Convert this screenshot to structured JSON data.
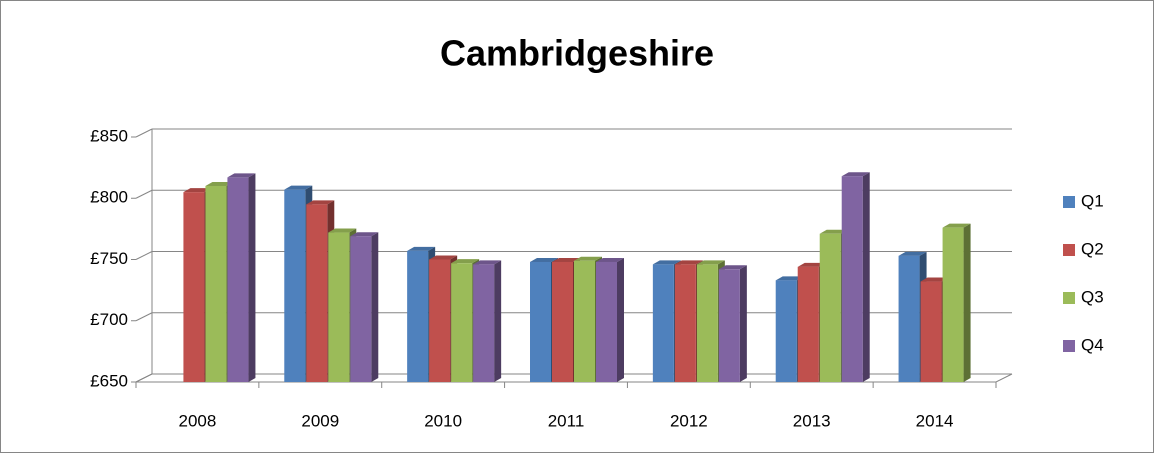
{
  "chart_data": {
    "type": "bar3d",
    "title": "Cambridgeshire",
    "categories": [
      "2008",
      "2009",
      "2010",
      "2011",
      "2012",
      "2013",
      "2014"
    ],
    "series": [
      {
        "name": "Q1",
        "color": "#4f81bd",
        "values": [
          null,
          807,
          757,
          748,
          746,
          733,
          753
        ]
      },
      {
        "name": "Q2",
        "color": "#c0504d",
        "values": [
          805,
          795,
          750,
          748,
          746,
          744,
          732
        ]
      },
      {
        "name": "Q3",
        "color": "#9bbb59",
        "values": [
          810,
          772,
          747,
          749,
          746,
          771,
          776
        ]
      },
      {
        "name": "Q4",
        "color": "#8064a2",
        "values": [
          817,
          769,
          746,
          748,
          742,
          818,
          null
        ]
      }
    ],
    "ylim": [
      650,
      850
    ],
    "yticks": [
      {
        "value": 650,
        "label": "£650"
      },
      {
        "value": 700,
        "label": "£700"
      },
      {
        "value": 750,
        "label": "£750"
      },
      {
        "value": 800,
        "label": "£800"
      },
      {
        "value": 850,
        "label": "£850"
      }
    ],
    "grid": true,
    "legend": "right"
  }
}
